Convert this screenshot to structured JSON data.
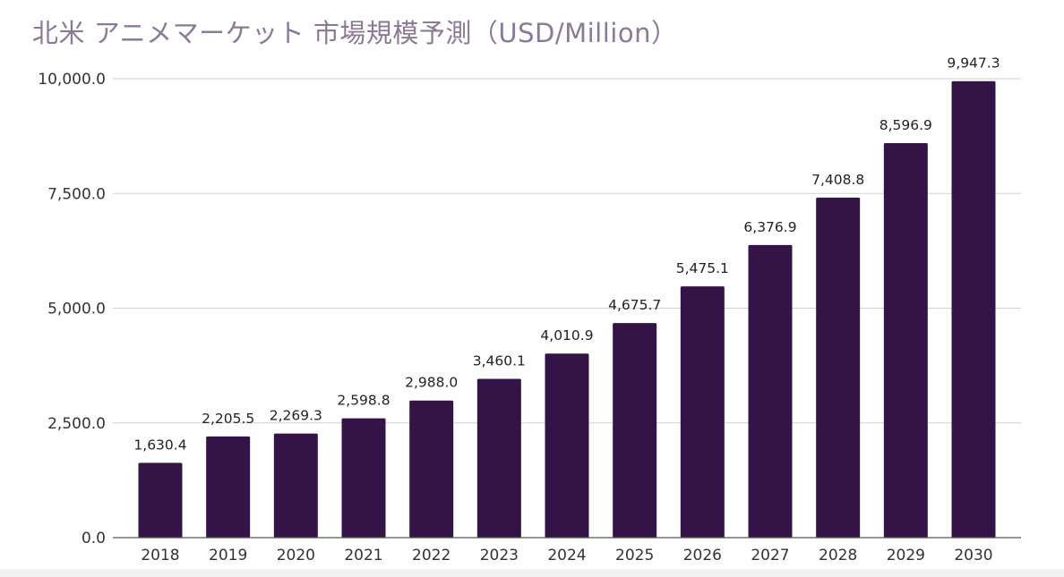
{
  "title": "北米 アニメマーケット 市場規模予測（USD/Million）",
  "colors": {
    "bar": "#341446",
    "title": "#8a7a96",
    "grid": "#d2d2d2"
  },
  "chart_data": {
    "type": "bar",
    "title": "北米 アニメマーケット 市場規模予測（USD/Million）",
    "xlabel": "",
    "ylabel": "",
    "categories": [
      "2018",
      "2019",
      "2020",
      "2021",
      "2022",
      "2023",
      "2024",
      "2025",
      "2026",
      "2027",
      "2028",
      "2029",
      "2030"
    ],
    "values": [
      1630.4,
      2205.5,
      2269.3,
      2598.8,
      2988.0,
      3460.1,
      4010.9,
      4675.7,
      5475.1,
      6376.9,
      7408.8,
      8596.9,
      9947.3
    ],
    "data_labels": [
      "1,630.4",
      "2,205.5",
      "2,269.3",
      "2,598.8",
      "2,988.0",
      "3,460.1",
      "4,010.9",
      "4,675.7",
      "5,475.1",
      "6,376.9",
      "7,408.8",
      "8,596.9",
      "9,947.3"
    ],
    "yticks": [
      0,
      2500,
      5000,
      7500,
      10000
    ],
    "ytick_labels": [
      "0.0",
      "2,500.0",
      "5,000.0",
      "7,500.0",
      "10,000.0"
    ],
    "ylim": [
      0,
      10000
    ],
    "grid": true,
    "legend": "none"
  }
}
